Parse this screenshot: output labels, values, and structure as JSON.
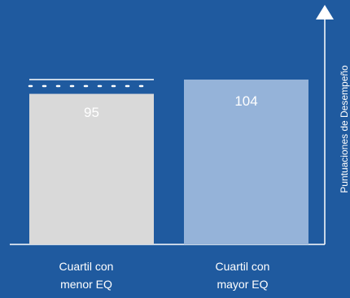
{
  "chart_data": {
    "type": "bar",
    "categories": [
      "Cuartil con menor EQ",
      "Cuartil con mayor EQ"
    ],
    "values": [
      95,
      104
    ],
    "ylabel": "Puntuaciones de Desempeño",
    "xlabel": "",
    "title": "",
    "ylim": [
      0,
      104
    ],
    "grid": false,
    "colors": {
      "background": "#1f5a9f",
      "bar_low": "#d9d9d9",
      "bar_high": "#95b3d9",
      "axis": "#ffffff",
      "value_label": "#ffffff"
    }
  },
  "labels": {
    "cat1_line1": "Cuartil con",
    "cat1_line2": "menor EQ",
    "cat2_line1": "Cuartil con",
    "cat2_line2": "mayor EQ"
  }
}
